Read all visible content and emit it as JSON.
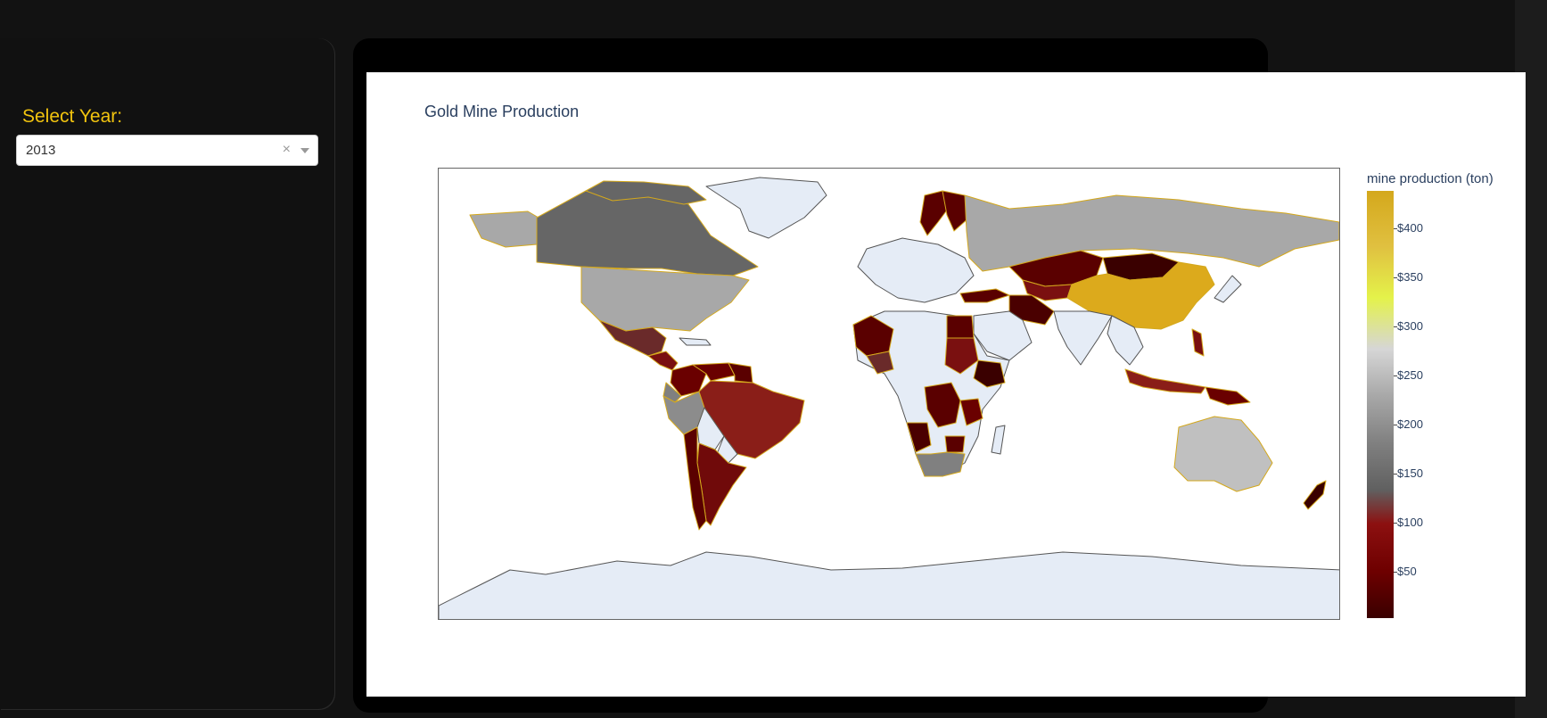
{
  "sidebar": {
    "year_label": "Select Year:",
    "year_dropdown": {
      "value": "2013",
      "clear_glyph": "×"
    }
  },
  "figure": {
    "title": "Gold Mine Production",
    "colorbar": {
      "title": "mine production (ton)",
      "ticks": [
        "$400",
        "$350",
        "$300",
        "$250",
        "$200",
        "$150",
        "$100",
        "$50"
      ]
    }
  },
  "colors": {
    "accent": "#f2c40f",
    "ocean": "#ffffff",
    "land_nodata": "#e5ecf6",
    "border": "#d4a81c"
  },
  "map_data": {
    "type": "choropleth",
    "year": "2013",
    "projection": "equirectangular",
    "colorscale_range": [
      0,
      440
    ],
    "countries": [
      {
        "name": "China",
        "value": 430
      },
      {
        "name": "Australia",
        "value": 265
      },
      {
        "name": "Russia",
        "value": 245
      },
      {
        "name": "United States",
        "value": 230
      },
      {
        "name": "Canada",
        "value": 165
      },
      {
        "name": "South Africa",
        "value": 170
      },
      {
        "name": "Peru",
        "value": 180
      },
      {
        "name": "Mexico",
        "value": 120
      },
      {
        "name": "Brazil",
        "value": 80
      },
      {
        "name": "Indonesia",
        "value": 60
      },
      {
        "name": "Argentina",
        "value": 30
      },
      {
        "name": "Colombia",
        "value": 55
      },
      {
        "name": "Venezuela",
        "value": 20
      },
      {
        "name": "Chile",
        "value": 45
      },
      {
        "name": "Ecuador",
        "value": 10
      },
      {
        "name": "Bolivia",
        "value": 60
      },
      {
        "name": "Guyana",
        "value": 25
      },
      {
        "name": "Suriname",
        "value": 25
      },
      {
        "name": "Kazakhstan",
        "value": 40
      },
      {
        "name": "Uzbekistan",
        "value": 100
      },
      {
        "name": "Mongolia",
        "value": 15
      },
      {
        "name": "Iran",
        "value": 10
      },
      {
        "name": "Turkey",
        "value": 30
      },
      {
        "name": "Sweden",
        "value": 8
      },
      {
        "name": "Finland",
        "value": 8
      },
      {
        "name": "Mali",
        "value": 50
      },
      {
        "name": "Ghana",
        "value": 110
      },
      {
        "name": "Burkina Faso",
        "value": 35
      },
      {
        "name": "Sudan",
        "value": 70
      },
      {
        "name": "Egypt",
        "value": 10
      },
      {
        "name": "Ethiopia",
        "value": 15
      },
      {
        "name": "DR Congo",
        "value": 20
      },
      {
        "name": "Tanzania",
        "value": 45
      },
      {
        "name": "Zimbabwe",
        "value": 15
      },
      {
        "name": "Angola",
        "value": 5
      },
      {
        "name": "Papua New Guinea",
        "value": 60
      },
      {
        "name": "Philippines",
        "value": 20
      },
      {
        "name": "New Zealand",
        "value": 10
      }
    ]
  }
}
